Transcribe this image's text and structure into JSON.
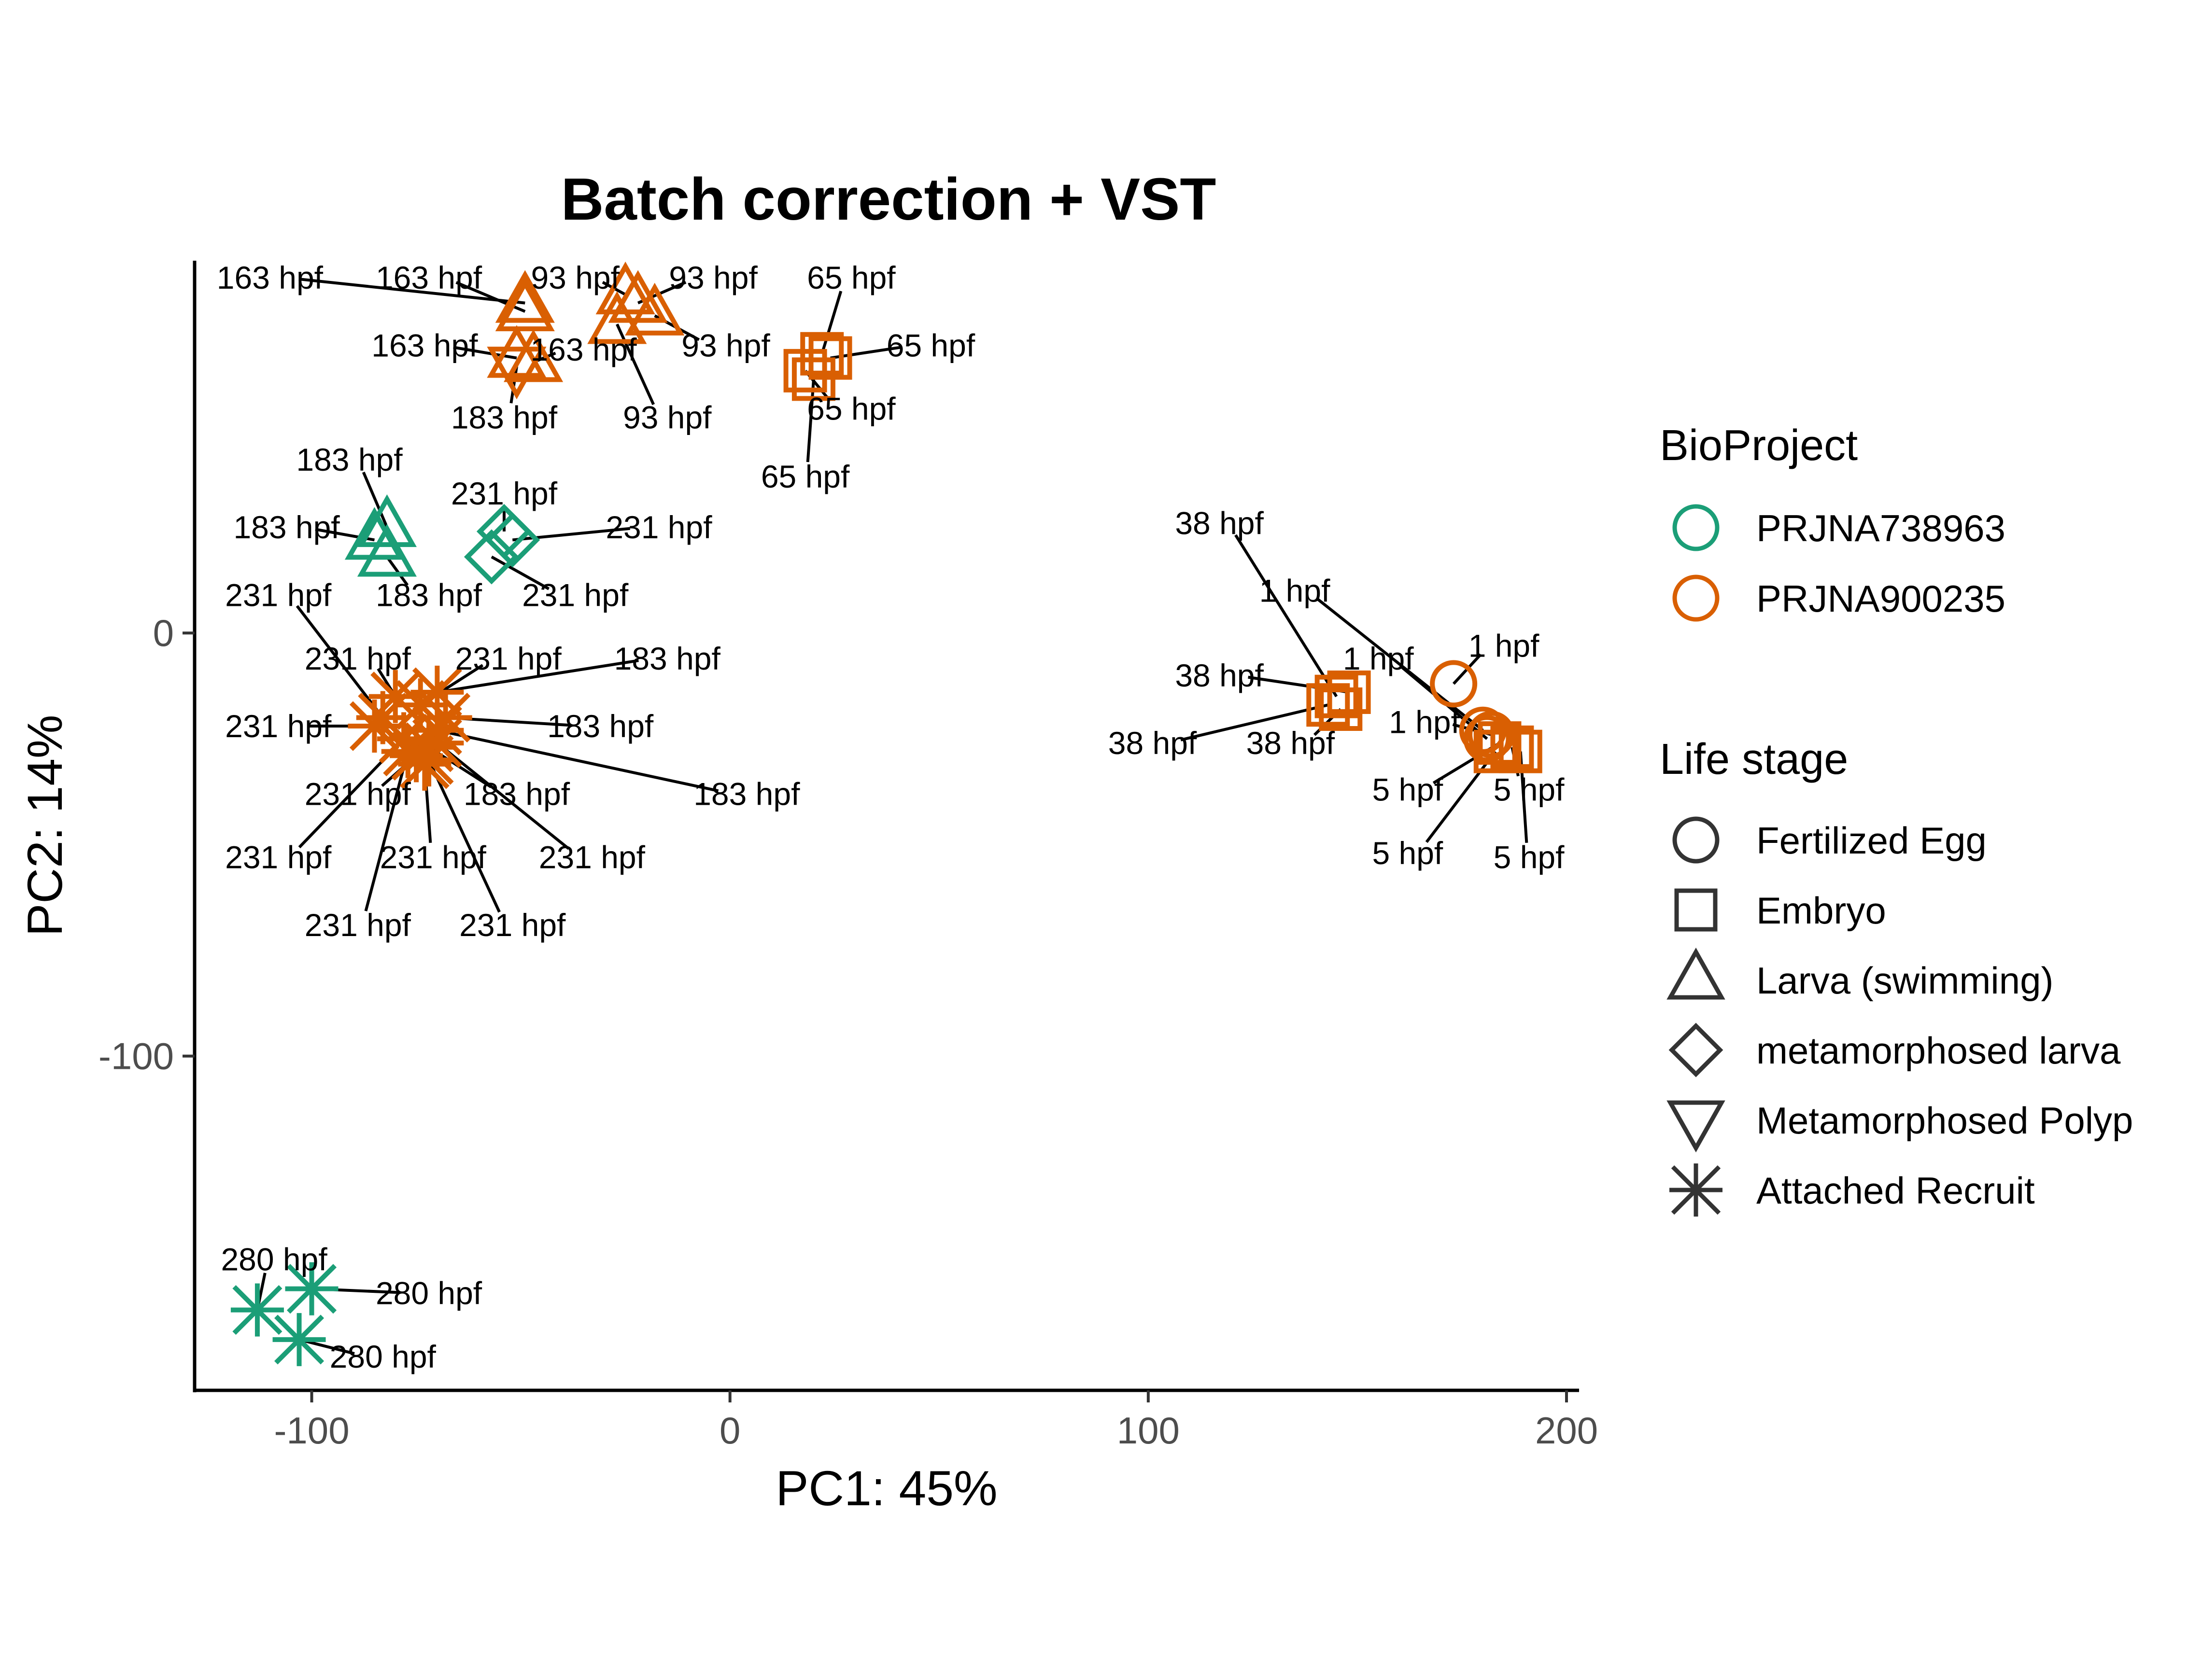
{
  "chart_data": {
    "type": "scatter",
    "title": "Batch correction + VST",
    "xlabel": "PC1: 45%",
    "ylabel": "PC2: 14%",
    "xlim": [
      -128,
      203
    ],
    "ylim": [
      -179,
      88
    ],
    "x_ticks": [
      -100,
      0,
      100,
      200
    ],
    "y_ticks": [
      0,
      -100
    ],
    "grid": false,
    "legend_position": "right",
    "point_label_unit": "hpf",
    "legends": [
      {
        "title": "BioProject",
        "kind": "color",
        "items": [
          {
            "label": "PRJNA738963",
            "color": "#1b9e77"
          },
          {
            "label": "PRJNA900235",
            "color": "#d95f02"
          }
        ]
      },
      {
        "title": "Life stage",
        "kind": "shape",
        "items": [
          {
            "label": "Fertilized Egg",
            "shape": "circle"
          },
          {
            "label": "Embryo",
            "shape": "square"
          },
          {
            "label": "Larva (swimming)",
            "shape": "triangle-up"
          },
          {
            "label": "metamorphosed larva",
            "shape": "diamond"
          },
          {
            "label": "Metamorphosed Polyp",
            "shape": "triangle-down"
          },
          {
            "label": "Attached Recruit",
            "shape": "asterisk"
          }
        ]
      }
    ],
    "series": [
      {
        "name": "PRJNA900235",
        "color": "#d95f02",
        "points": [
          {
            "x": -49,
            "y": 78,
            "stage": "Larva (swimming)",
            "label": "163 hpf",
            "lx": -110,
            "ly": 84
          },
          {
            "x": -49,
            "y": 76,
            "stage": "Larva (swimming)",
            "label": "163 hpf",
            "lx": -72,
            "ly": 84
          },
          {
            "x": -51,
            "y": 65,
            "stage": "Larva (swimming)",
            "label": "163 hpf",
            "lx": -73,
            "ly": 68
          },
          {
            "x": -47,
            "y": 64,
            "stage": "Larva (swimming)",
            "label": "163 hpf",
            "lx": -35,
            "ly": 67
          },
          {
            "x": -51,
            "y": 63,
            "stage": "Metamorphosed Polyp",
            "label": "183 hpf",
            "lx": -54,
            "ly": 51
          },
          {
            "x": -25,
            "y": 80,
            "stage": "Larva (swimming)",
            "label": "93 hpf",
            "lx": -37,
            "ly": 84
          },
          {
            "x": -22,
            "y": 78,
            "stage": "Larva (swimming)",
            "label": "93 hpf",
            "lx": -4,
            "ly": 84
          },
          {
            "x": -18,
            "y": 75,
            "stage": "Larva (swimming)",
            "label": "93 hpf",
            "lx": -1,
            "ly": 68
          },
          {
            "x": -27,
            "y": 73,
            "stage": "Larva (swimming)",
            "label": "93 hpf",
            "lx": -15,
            "ly": 51
          },
          {
            "x": 22,
            "y": 66,
            "stage": "Embryo",
            "label": "65 hpf",
            "lx": 29,
            "ly": 84
          },
          {
            "x": 24,
            "y": 65,
            "stage": "Embryo",
            "label": "65 hpf",
            "lx": 48,
            "ly": 68
          },
          {
            "x": 18,
            "y": 62,
            "stage": "Embryo",
            "label": "65 hpf",
            "lx": 29,
            "ly": 53
          },
          {
            "x": 20,
            "y": 60,
            "stage": "Embryo",
            "label": "65 hpf",
            "lx": 18,
            "ly": 37
          },
          {
            "x": -83,
            "y": -20,
            "stage": "Attached Recruit",
            "label": "231 hpf",
            "lx": -108,
            "ly": 9
          },
          {
            "x": -80,
            "y": -15,
            "stage": "Attached Recruit",
            "label": "231 hpf",
            "lx": -89,
            "ly": -6
          },
          {
            "x": -74,
            "y": -17,
            "stage": "Attached Recruit",
            "label": "231 hpf",
            "lx": -53,
            "ly": -6
          },
          {
            "x": -70,
            "y": -14,
            "stage": "Attached Recruit",
            "label": "183 hpf",
            "lx": -15,
            "ly": -6
          },
          {
            "x": -85,
            "y": -22,
            "stage": "Attached Recruit",
            "label": "231 hpf",
            "lx": -108,
            "ly": -22
          },
          {
            "x": -68,
            "y": -20,
            "stage": "Attached Recruit",
            "label": "183 hpf",
            "lx": -31,
            "ly": -22
          },
          {
            "x": -75,
            "y": -29,
            "stage": "Attached Recruit",
            "label": "231 hpf",
            "lx": -89,
            "ly": -38
          },
          {
            "x": -72,
            "y": -27,
            "stage": "Attached Recruit",
            "label": "183 hpf",
            "lx": -51,
            "ly": -38
          },
          {
            "x": -70,
            "y": -23,
            "stage": "Attached Recruit",
            "label": "183 hpf",
            "lx": 4,
            "ly": -38
          },
          {
            "x": -78,
            "y": -25,
            "stage": "Attached Recruit",
            "label": "231 hpf",
            "lx": -108,
            "ly": -53
          },
          {
            "x": -73,
            "y": -31,
            "stage": "Attached Recruit",
            "label": "231 hpf",
            "lx": -71,
            "ly": -53
          },
          {
            "x": -70,
            "y": -26,
            "stage": "Attached Recruit",
            "label": "231 hpf",
            "lx": -33,
            "ly": -53
          },
          {
            "x": -77,
            "y": -28,
            "stage": "Attached Recruit",
            "label": "231 hpf",
            "lx": -89,
            "ly": -69
          },
          {
            "x": -72,
            "y": -30,
            "stage": "Attached Recruit",
            "label": "231 hpf",
            "lx": -52,
            "ly": -69
          },
          {
            "x": 145,
            "y": -15,
            "stage": "Embryo",
            "label": "38 hpf",
            "lx": 117,
            "ly": 26
          },
          {
            "x": 148,
            "y": -14,
            "stage": "Embryo",
            "label": "38 hpf",
            "lx": 117,
            "ly": -10
          },
          {
            "x": 143,
            "y": -17,
            "stage": "Embryo",
            "label": "38 hpf",
            "lx": 101,
            "ly": -26
          },
          {
            "x": 146,
            "y": -18,
            "stage": "Embryo",
            "label": "38 hpf",
            "lx": 134,
            "ly": -26
          },
          {
            "x": 173,
            "y": -12,
            "stage": "Fertilized Egg",
            "label": "1 hpf",
            "lx": 185,
            "ly": -3
          },
          {
            "x": 180,
            "y": -23,
            "stage": "Fertilized Egg",
            "label": "1 hpf",
            "lx": 135,
            "ly": 10
          },
          {
            "x": 181,
            "y": -25,
            "stage": "Fertilized Egg",
            "label": "1 hpf",
            "lx": 155,
            "ly": -6
          },
          {
            "x": 182,
            "y": -24,
            "stage": "Fertilized Egg",
            "label": "1 hpf",
            "lx": 166,
            "ly": -21
          },
          {
            "x": 184,
            "y": -26,
            "stage": "Embryo",
            "label": "5 hpf",
            "lx": 162,
            "ly": -37
          },
          {
            "x": 187,
            "y": -27,
            "stage": "Embryo",
            "label": "5 hpf",
            "lx": 191,
            "ly": -37
          },
          {
            "x": 183,
            "y": -28,
            "stage": "Embryo",
            "label": "5 hpf",
            "lx": 162,
            "ly": -52
          },
          {
            "x": 189,
            "y": -28,
            "stage": "Embryo",
            "label": "5 hpf",
            "lx": 191,
            "ly": -53
          }
        ]
      },
      {
        "name": "PRJNA738963",
        "color": "#1b9e77",
        "points": [
          {
            "x": -82,
            "y": 25,
            "stage": "Larva (swimming)",
            "label": "183 hpf",
            "lx": -91,
            "ly": 41
          },
          {
            "x": -85,
            "y": 22,
            "stage": "Larva (swimming)",
            "label": "183 hpf",
            "lx": -106,
            "ly": 25
          },
          {
            "x": -82,
            "y": 18,
            "stage": "Larva (swimming)",
            "label": "183 hpf",
            "lx": -72,
            "ly": 9
          },
          {
            "x": -54,
            "y": 24,
            "stage": "metamorphosed larva",
            "label": "231 hpf",
            "lx": -54,
            "ly": 33
          },
          {
            "x": -52,
            "y": 22,
            "stage": "metamorphosed larva",
            "label": "231 hpf",
            "lx": -17,
            "ly": 25
          },
          {
            "x": -57,
            "y": 18,
            "stage": "metamorphosed larva",
            "label": "231 hpf",
            "lx": -37,
            "ly": 9
          },
          {
            "x": -113,
            "y": -160,
            "stage": "Attached Recruit",
            "label": "280 hpf",
            "lx": -109,
            "ly": -148
          },
          {
            "x": -100,
            "y": -155,
            "stage": "Attached Recruit",
            "label": "280 hpf",
            "lx": -72,
            "ly": -156
          },
          {
            "x": -103,
            "y": -167,
            "stage": "Attached Recruit",
            "label": "280 hpf",
            "lx": -83,
            "ly": -171
          }
        ]
      }
    ]
  }
}
